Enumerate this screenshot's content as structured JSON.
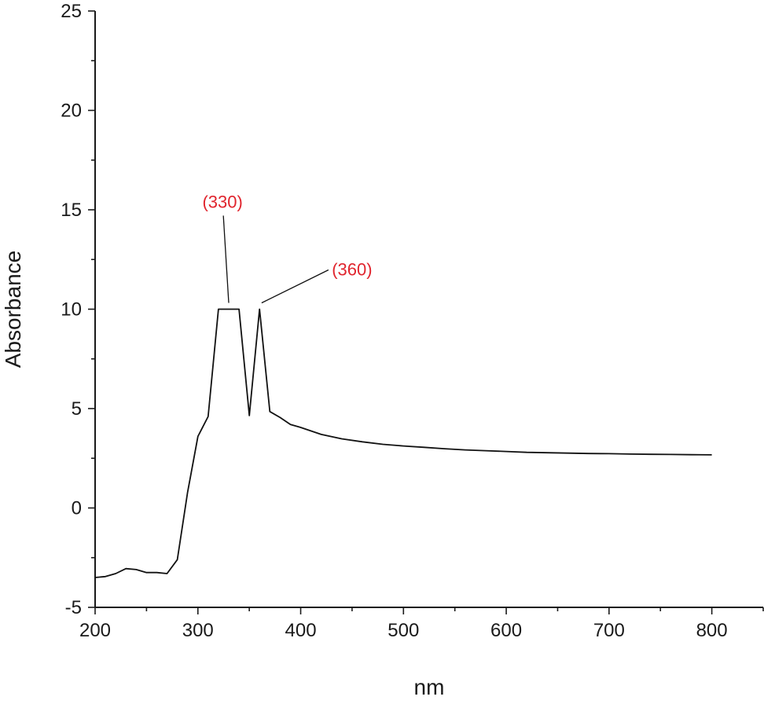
{
  "chart_data": {
    "type": "line",
    "xlabel": "nm",
    "ylabel": "Absorbance",
    "xlim": [
      200,
      850
    ],
    "ylim": [
      -5,
      25
    ],
    "xticks": [
      200,
      300,
      400,
      500,
      600,
      700,
      800
    ],
    "yticks": [
      -5,
      0,
      5,
      10,
      15,
      20,
      25
    ],
    "grid": false,
    "series": [
      {
        "color": "#111111",
        "x": [
          200,
          210,
          220,
          230,
          240,
          250,
          260,
          270,
          280,
          290,
          300,
          310,
          320,
          330,
          340,
          350,
          360,
          370,
          380,
          390,
          400,
          420,
          440,
          460,
          480,
          500,
          520,
          540,
          560,
          580,
          600,
          620,
          640,
          660,
          680,
          700,
          720,
          740,
          760,
          780,
          800
        ],
        "y": [
          -3.5,
          -3.45,
          -3.3,
          -3.05,
          -3.1,
          -3.25,
          -3.25,
          -3.3,
          -2.6,
          0.8,
          3.6,
          4.6,
          10.0,
          10.0,
          10.0,
          4.65,
          10.0,
          4.85,
          4.55,
          4.2,
          4.05,
          3.7,
          3.48,
          3.33,
          3.2,
          3.12,
          3.05,
          2.98,
          2.92,
          2.88,
          2.84,
          2.8,
          2.78,
          2.76,
          2.74,
          2.73,
          2.71,
          2.7,
          2.69,
          2.68,
          2.67
        ]
      }
    ],
    "annotations": [
      {
        "text": "(330)",
        "color": "#e0242d",
        "x": 330,
        "y": 10.0,
        "label_x": 324,
        "label_y": 15.1
      },
      {
        "text": "(360)",
        "color": "#e0242d",
        "x": 362,
        "y": 10.0,
        "label_x": 450,
        "label_y": 11.7
      }
    ]
  }
}
